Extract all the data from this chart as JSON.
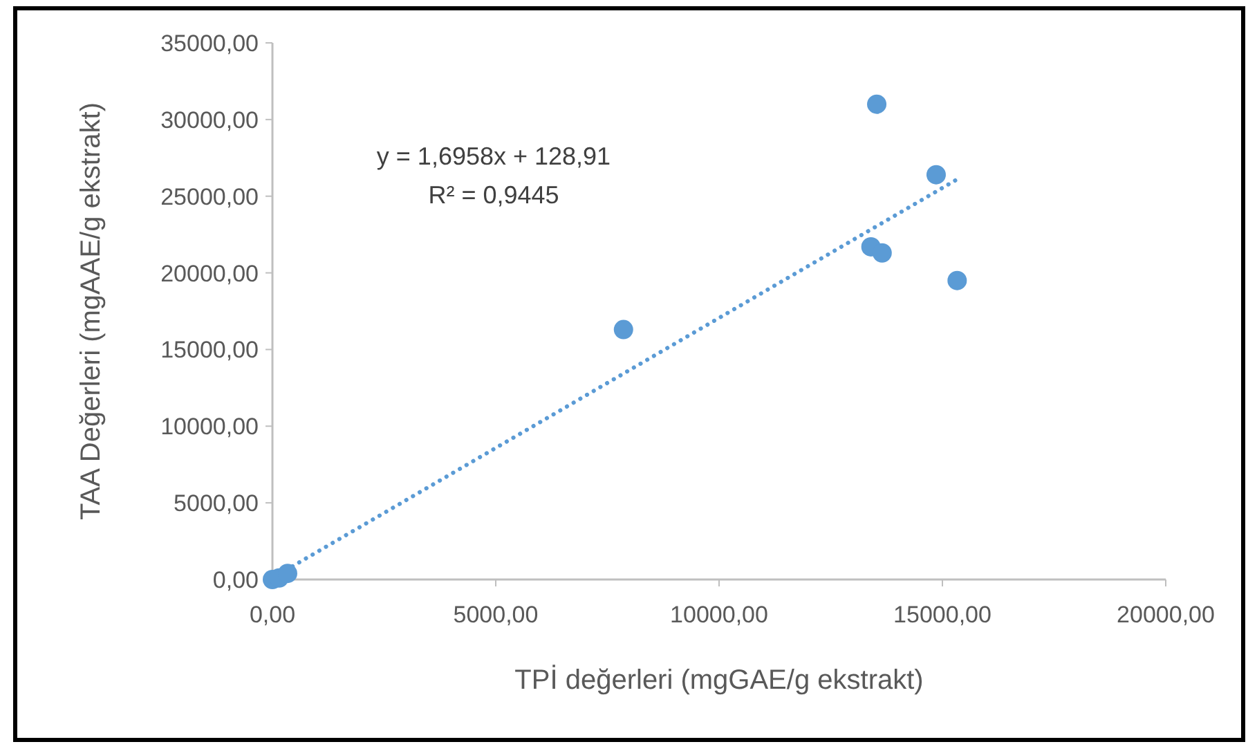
{
  "chart_data": {
    "type": "scatter",
    "xlabel": "TPİ değerleri (mgGAE/g ekstrakt)",
    "ylabel": "TAA Değerleri (mgAAE/g ekstrakt)",
    "xlim": [
      0,
      20000
    ],
    "xticks": [
      {
        "value": 0,
        "label": "0,00"
      },
      {
        "value": 5000,
        "label": "5000,00"
      },
      {
        "value": 10000,
        "label": "10000,00"
      },
      {
        "value": 15000,
        "label": "15000,00"
      },
      {
        "value": 20000,
        "label": "20000,00"
      }
    ],
    "ylim": [
      0,
      35000
    ],
    "yticks": [
      {
        "value": 0,
        "label": "0,00"
      },
      {
        "value": 5000,
        "label": "5000,00"
      },
      {
        "value": 10000,
        "label": "10000,00"
      },
      {
        "value": 15000,
        "label": "15000,00"
      },
      {
        "value": 20000,
        "label": "20000,00"
      },
      {
        "value": 25000,
        "label": "25000,00"
      },
      {
        "value": 30000,
        "label": "30000,00"
      },
      {
        "value": 35000,
        "label": "35000,00"
      }
    ],
    "annotations": [
      "y = 1,6958x + 128,91",
      "R² = 0,9445"
    ],
    "series": [
      {
        "color": "#5b9bd5",
        "marker": "circle",
        "x": [
          0,
          150,
          340,
          7860,
          13530,
          14860,
          13400,
          13650,
          15330
        ],
        "values": [
          0,
          100,
          400,
          16300,
          31000,
          26400,
          21700,
          21300,
          19500
        ]
      },
      {
        "type": "line",
        "color": "#5b9bd5",
        "line_style": "dotted",
        "marker": "none",
        "x": [
          0,
          15330
        ],
        "values": [
          100,
          26100
        ]
      }
    ]
  }
}
